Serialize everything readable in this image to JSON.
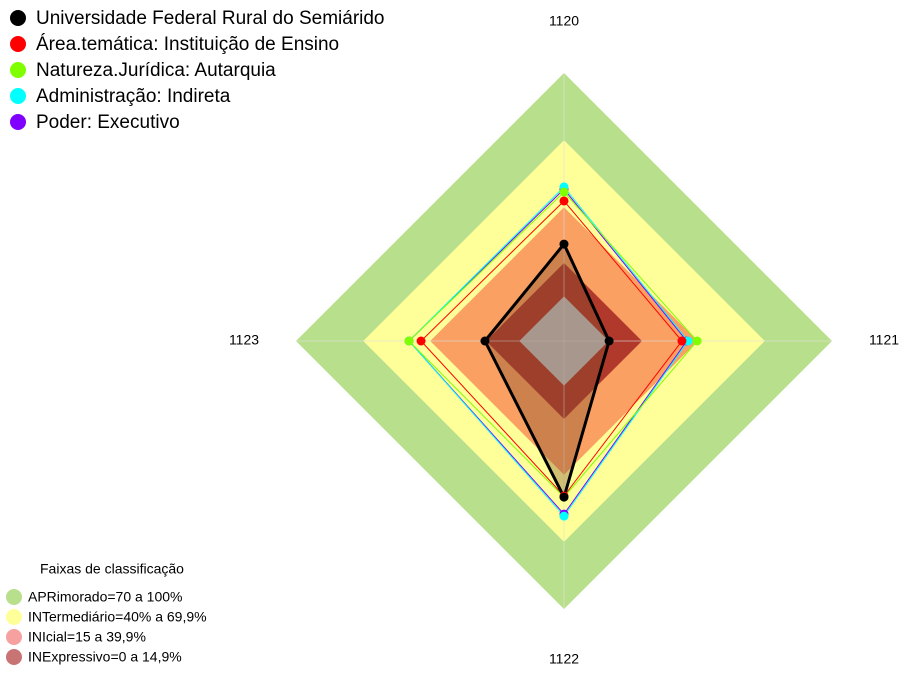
{
  "chart_data": {
    "type": "radar",
    "categories": [
      "1120",
      "1121",
      "1122",
      "1123"
    ],
    "ylim": [
      -20,
      100
    ],
    "series": [
      {
        "name": "Universidade Federal Rural do Semiárido",
        "color": "#000000",
        "values": [
          23.4,
          0.2,
          49.9,
          15.4
        ]
      },
      {
        "name": "Área.temática: Instituição de Ensino",
        "color": "#ff0000",
        "values": [
          42.7,
          32.8,
          49.4,
          44
        ]
      },
      {
        "name": "Natureza.Jurídica: Autarquia",
        "color": "#7fff00",
        "values": [
          46.7,
          39.6,
          49.9,
          49.4
        ]
      },
      {
        "name": "Administração: Indireta",
        "color": "#00ffff",
        "values": [
          49,
          35.5,
          58.4,
          49.4
        ]
      },
      {
        "name": "Poder: Executivo",
        "color": "#8000ff",
        "values": [
          48,
          35,
          57.5,
          49.4
        ]
      }
    ],
    "bands_title": "Faixas de classificação",
    "bands": [
      {
        "label": "APRimorado=70 a 100%",
        "from": 70,
        "to": 100,
        "color": "#b8e08c",
        "plot_color": "#b8e08c"
      },
      {
        "label": "INTermediário=40% a 69,9%",
        "from": 40,
        "to": 69.9,
        "color": "#ffff99",
        "plot_color": "#ffff99"
      },
      {
        "label": "INIcial=15 a 39,9%",
        "from": 15,
        "to": 39.9,
        "color": "#f7a0a0",
        "plot_color": "#f9a062"
      },
      {
        "label": "INExpressivo=0 a 14,9%",
        "from": 0,
        "to": 14.9,
        "color": "#c87474",
        "plot_color": "#b0392c"
      }
    ]
  }
}
